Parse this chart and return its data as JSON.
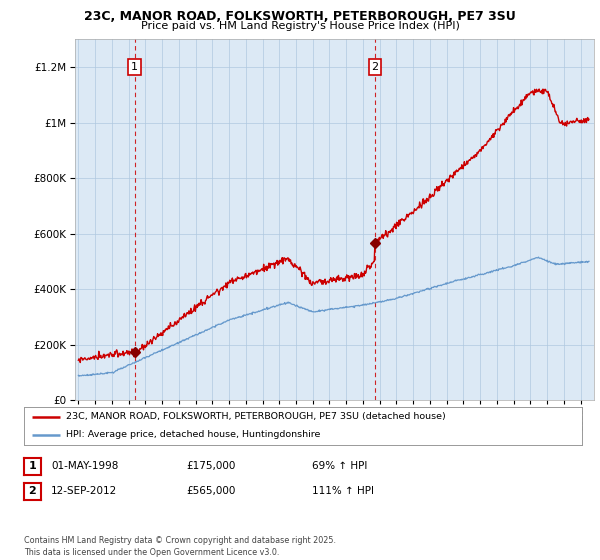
{
  "title_line1": "23C, MANOR ROAD, FOLKSWORTH, PETERBOROUGH, PE7 3SU",
  "title_line2": "Price paid vs. HM Land Registry's House Price Index (HPI)",
  "background_color": "#ffffff",
  "plot_bg_color": "#dce9f5",
  "grid_color": "#b0c8e0",
  "red_line_color": "#cc0000",
  "blue_line_color": "#6699cc",
  "marker1_year": 1998.37,
  "marker1_value": 175000,
  "marker2_year": 2012.71,
  "marker2_value": 565000,
  "legend_entry1": "23C, MANOR ROAD, FOLKSWORTH, PETERBOROUGH, PE7 3SU (detached house)",
  "legend_entry2": "HPI: Average price, detached house, Huntingdonshire",
  "table_row1": [
    "1",
    "01-MAY-1998",
    "£175,000",
    "69% ↑ HPI"
  ],
  "table_row2": [
    "2",
    "12-SEP-2012",
    "£565,000",
    "111% ↑ HPI"
  ],
  "copyright_text": "Contains HM Land Registry data © Crown copyright and database right 2025.\nThis data is licensed under the Open Government Licence v3.0.",
  "ylim": [
    0,
    1300000
  ],
  "xlim_start": 1994.8,
  "xlim_end": 2025.8
}
